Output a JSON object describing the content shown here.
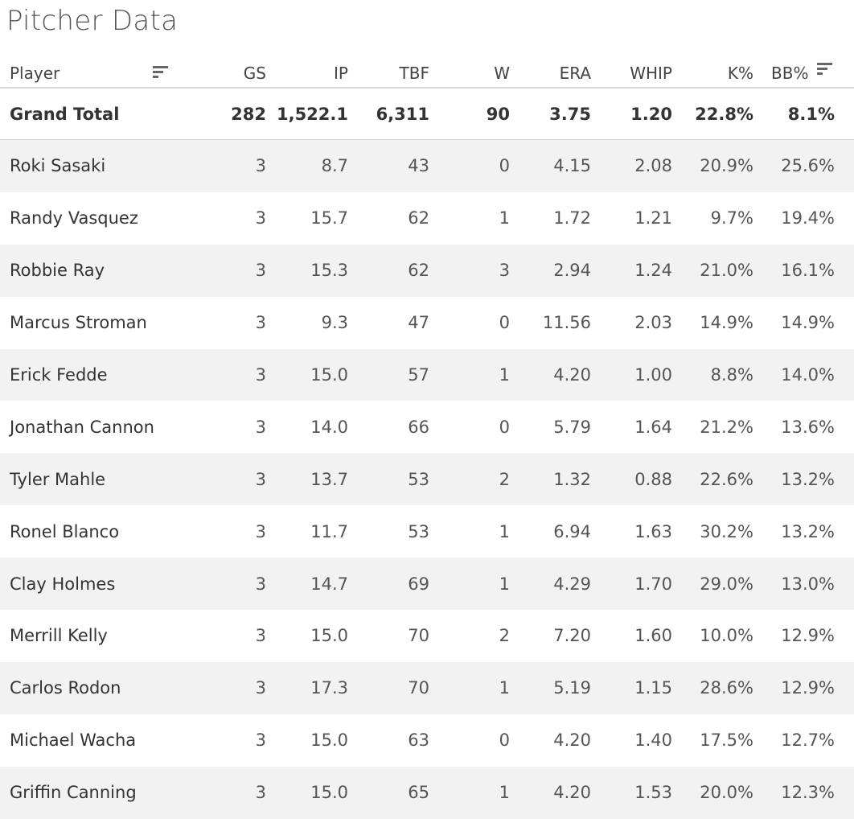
{
  "title": "Pitcher Data",
  "columns": {
    "player": "Player",
    "gs": "GS",
    "ip": "IP",
    "tbf": "TBF",
    "w": "W",
    "era": "ERA",
    "whip": "WHIP",
    "k_pct": "K%",
    "bb_pct": "BB%"
  },
  "sort_icons": [
    "sort-icon",
    "sort-icon"
  ],
  "colors": {
    "row_shade": "#f2f2f2",
    "divider": "#d6d6d6",
    "text": "#333333"
  },
  "grand_total": {
    "player": "Grand Total",
    "gs": "282",
    "ip": "1,522.1",
    "tbf": "6,311",
    "w": "90",
    "era": "3.75",
    "whip": "1.20",
    "k_pct": "22.8%",
    "bb_pct": "8.1%"
  },
  "rows": [
    {
      "player": "Roki Sasaki",
      "gs": "3",
      "ip": "8.7",
      "tbf": "43",
      "w": "0",
      "era": "4.15",
      "whip": "2.08",
      "k_pct": "20.9%",
      "bb_pct": "25.6%"
    },
    {
      "player": "Randy Vasquez",
      "gs": "3",
      "ip": "15.7",
      "tbf": "62",
      "w": "1",
      "era": "1.72",
      "whip": "1.21",
      "k_pct": "9.7%",
      "bb_pct": "19.4%"
    },
    {
      "player": "Robbie Ray",
      "gs": "3",
      "ip": "15.3",
      "tbf": "62",
      "w": "3",
      "era": "2.94",
      "whip": "1.24",
      "k_pct": "21.0%",
      "bb_pct": "16.1%"
    },
    {
      "player": "Marcus Stroman",
      "gs": "3",
      "ip": "9.3",
      "tbf": "47",
      "w": "0",
      "era": "11.56",
      "whip": "2.03",
      "k_pct": "14.9%",
      "bb_pct": "14.9%"
    },
    {
      "player": "Erick Fedde",
      "gs": "3",
      "ip": "15.0",
      "tbf": "57",
      "w": "1",
      "era": "4.20",
      "whip": "1.00",
      "k_pct": "8.8%",
      "bb_pct": "14.0%"
    },
    {
      "player": "Jonathan Cannon",
      "gs": "3",
      "ip": "14.0",
      "tbf": "66",
      "w": "0",
      "era": "5.79",
      "whip": "1.64",
      "k_pct": "21.2%",
      "bb_pct": "13.6%"
    },
    {
      "player": "Tyler Mahle",
      "gs": "3",
      "ip": "13.7",
      "tbf": "53",
      "w": "2",
      "era": "1.32",
      "whip": "0.88",
      "k_pct": "22.6%",
      "bb_pct": "13.2%"
    },
    {
      "player": "Ronel Blanco",
      "gs": "3",
      "ip": "11.7",
      "tbf": "53",
      "w": "1",
      "era": "6.94",
      "whip": "1.63",
      "k_pct": "30.2%",
      "bb_pct": "13.2%"
    },
    {
      "player": "Clay Holmes",
      "gs": "3",
      "ip": "14.7",
      "tbf": "69",
      "w": "1",
      "era": "4.29",
      "whip": "1.70",
      "k_pct": "29.0%",
      "bb_pct": "13.0%"
    },
    {
      "player": "Merrill Kelly",
      "gs": "3",
      "ip": "15.0",
      "tbf": "70",
      "w": "2",
      "era": "7.20",
      "whip": "1.60",
      "k_pct": "10.0%",
      "bb_pct": "12.9%"
    },
    {
      "player": "Carlos Rodon",
      "gs": "3",
      "ip": "17.3",
      "tbf": "70",
      "w": "1",
      "era": "5.19",
      "whip": "1.15",
      "k_pct": "28.6%",
      "bb_pct": "12.9%"
    },
    {
      "player": "Michael Wacha",
      "gs": "3",
      "ip": "15.0",
      "tbf": "63",
      "w": "0",
      "era": "4.20",
      "whip": "1.40",
      "k_pct": "17.5%",
      "bb_pct": "12.7%"
    },
    {
      "player": "Griffin Canning",
      "gs": "3",
      "ip": "15.0",
      "tbf": "65",
      "w": "1",
      "era": "4.20",
      "whip": "1.53",
      "k_pct": "20.0%",
      "bb_pct": "12.3%"
    }
  ]
}
